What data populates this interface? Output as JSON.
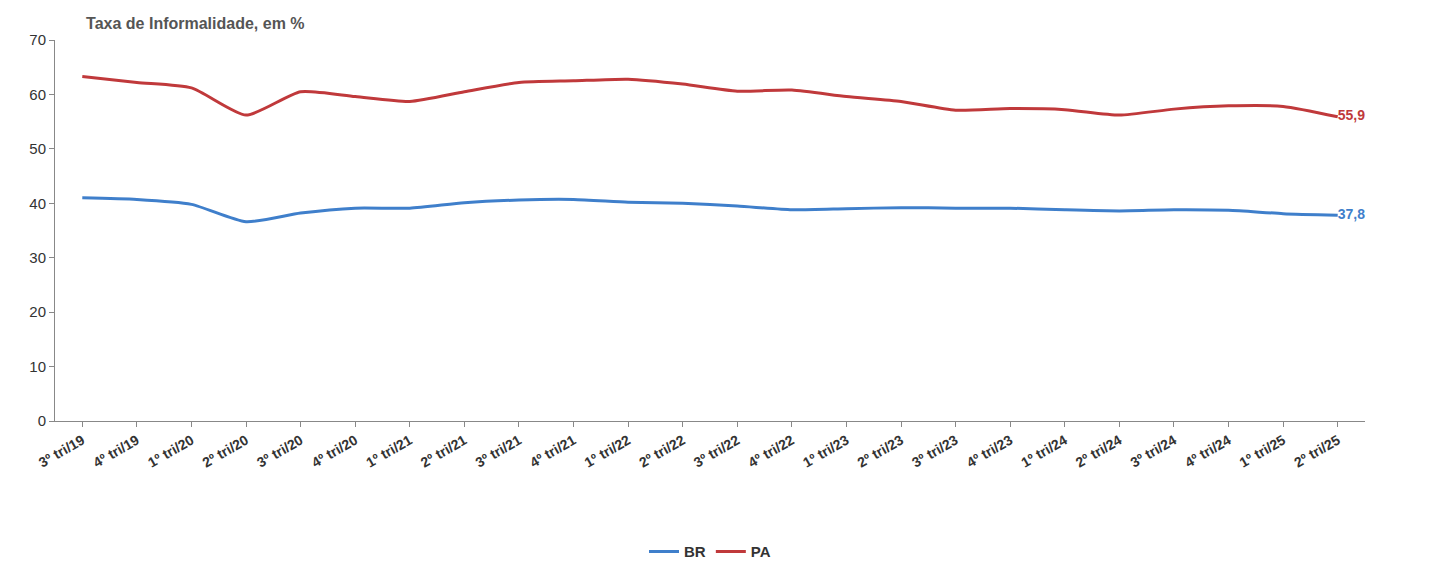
{
  "chart_data": {
    "type": "line",
    "title": "Taxa de Informalidade, em %",
    "categories": [
      "3º tri/19",
      "4º tri/19",
      "1º tri/20",
      "2º tri/20",
      "3º tri/20",
      "4º tri/20",
      "1º tri/21",
      "2º tri/21",
      "3º tri/21",
      "4º tri/21",
      "1º tri/22",
      "2º tri/22",
      "3º tri/22",
      "4º tri/22",
      "1º tri/23",
      "2º tri/23",
      "3º tri/23",
      "4º tri/23",
      "1º tri/24",
      "2º tri/24",
      "3º tri/24",
      "4º tri/24",
      "1º tri/25",
      "2º tri/25"
    ],
    "series": [
      {
        "name": "BR",
        "color": "#3f7fcb",
        "values": [
          41.0,
          40.7,
          39.8,
          36.6,
          38.2,
          39.1,
          39.1,
          40.1,
          40.6,
          40.7,
          40.2,
          40.0,
          39.5,
          38.8,
          39.0,
          39.2,
          39.1,
          39.1,
          38.8,
          38.6,
          38.8,
          38.7,
          38.1,
          37.8
        ],
        "value_labels": [
          null,
          null,
          null,
          null,
          null,
          null,
          null,
          null,
          null,
          null,
          null,
          null,
          null,
          null,
          null,
          null,
          null,
          null,
          null,
          null,
          null,
          null,
          null,
          "37,8"
        ]
      },
      {
        "name": "PA",
        "color": "#c0393b",
        "values": [
          63.3,
          62.2,
          61.2,
          56.2,
          60.5,
          59.6,
          58.7,
          60.5,
          62.2,
          62.5,
          62.8,
          61.9,
          60.6,
          60.8,
          59.6,
          58.7,
          57.1,
          57.4,
          57.2,
          56.2,
          57.3,
          57.9,
          57.8,
          55.9
        ],
        "value_labels": [
          null,
          null,
          null,
          null,
          null,
          null,
          null,
          null,
          null,
          null,
          null,
          null,
          null,
          null,
          null,
          null,
          null,
          null,
          null,
          null,
          null,
          null,
          null,
          "55,9"
        ]
      }
    ],
    "ylim": [
      0,
      70
    ],
    "yticks": [
      0,
      10,
      20,
      30,
      40,
      50,
      60,
      70
    ],
    "grid": false,
    "legend": "bottom",
    "data_labels": true
  }
}
